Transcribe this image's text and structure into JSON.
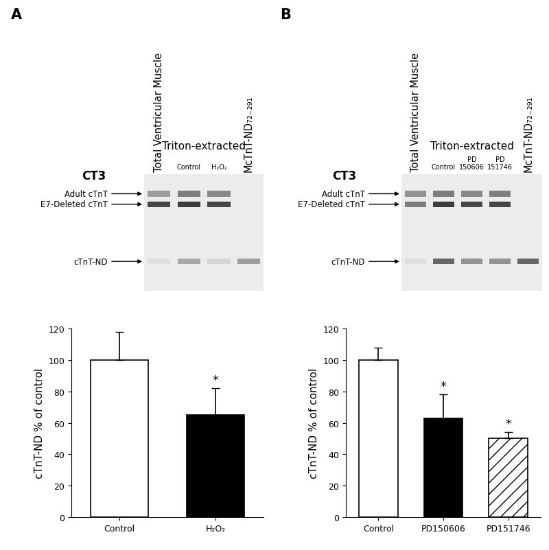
{
  "panels": [
    {
      "label": "A",
      "blot": {
        "antibody": "CT3",
        "lanes": [
          {
            "label": "Total Ventricular Muscle",
            "group": null
          },
          {
            "label": "Control",
            "group": "Triton-extracted"
          },
          {
            "label": "H₂O₂",
            "group": "Triton-extracted"
          },
          {
            "label": "McTnT-ND₇₂₋₂₉₁",
            "group": null
          }
        ],
        "bands": [
          "Adult cTnT",
          "E7-Deleted cTnT",
          "cTnT-ND"
        ]
      }
    },
    {
      "label": "B",
      "blot": {
        "antibody": "CT3",
        "lanes": [
          {
            "label": "Total Ventricular Muscle",
            "group": null
          },
          {
            "label": "Control",
            "group": "Triton-extracted"
          },
          {
            "label": "PD\n150606",
            "group": "Triton-extracted"
          },
          {
            "label": "PD\n151746",
            "group": "Triton-extracted"
          },
          {
            "label": "McTnT-ND₇₂₋₂₉₁",
            "group": null
          }
        ],
        "bands": [
          "Adult cTnT",
          "E7-Deleted cTnT",
          "cTnT-ND"
        ]
      }
    }
  ],
  "chart_data": [
    {
      "type": "bar",
      "categories": [
        "Control",
        "H₂O₂"
      ],
      "values": [
        100,
        65
      ],
      "errors": [
        18,
        17
      ],
      "significance": [
        null,
        "*"
      ],
      "y_label": "cTnT-ND % of control",
      "ylim": [
        0,
        120
      ],
      "yticks": [
        0,
        20,
        40,
        60,
        80,
        100,
        120
      ],
      "colors": [
        "#ffffff",
        "#000000"
      ]
    },
    {
      "type": "bar",
      "categories": [
        "Control",
        "PD150606",
        "PD151746"
      ],
      "values": [
        100,
        63,
        50
      ],
      "errors": [
        8,
        15,
        4
      ],
      "significance": [
        null,
        "*",
        "*"
      ],
      "y_label": "cTnT-ND % of control",
      "ylim": [
        0,
        120
      ],
      "yticks": [
        0,
        20,
        40,
        60,
        80,
        100,
        120
      ],
      "colors": [
        "#ffffff",
        "#000000",
        "#ffffff"
      ]
    }
  ]
}
